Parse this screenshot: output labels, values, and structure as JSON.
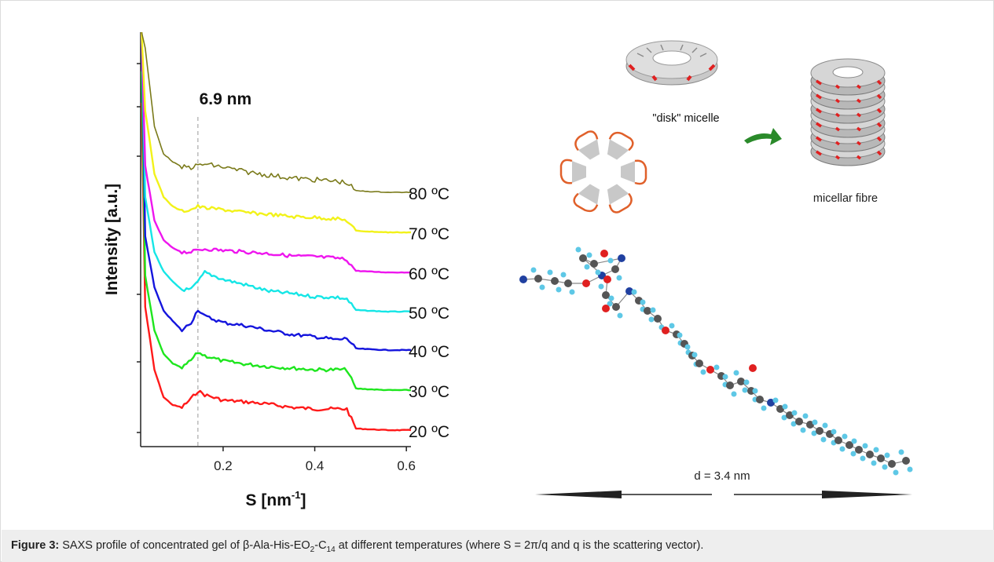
{
  "figure": {
    "label": "Figure 3:",
    "caption": {
      "pre": "SAXS profile of concentrated gel of β-Ala-His-EO",
      "sub1": "2",
      "mid": "-C",
      "sub2": "14",
      "post": " at different temperatures (where S = 2π/q and q is the scattering vector)."
    }
  },
  "chart_data": {
    "type": "line",
    "xlabel": "S [nm",
    "xlabel_sup": "-1",
    "xlabel_end": "]",
    "ylabel": "Intensity [a.u.]",
    "xlim": [
      0.02,
      0.61
    ],
    "xticks": [
      0.2,
      0.4,
      0.6
    ],
    "xtick_labels": [
      "0.2",
      "0.4",
      "0.6"
    ],
    "peak_annotation": "6.9 nm",
    "peak_position": 0.145,
    "series": [
      {
        "name": "20 ºC",
        "color": "#ff1a1a",
        "baseline": 548,
        "x": [
          0.03,
          0.05,
          0.07,
          0.09,
          0.11,
          0.13,
          0.145,
          0.16,
          0.2,
          0.25,
          0.3,
          0.35,
          0.4,
          0.45,
          0.47,
          0.49,
          0.52,
          0.56,
          0.61
        ],
        "y": [
          390,
          470,
          505,
          515,
          518,
          507,
          497,
          502,
          509,
          511,
          514,
          518,
          520,
          520,
          520,
          545,
          546,
          547,
          547
        ]
      },
      {
        "name": "30 ºC",
        "color": "#1ee61e",
        "baseline": 497,
        "x": [
          0.03,
          0.05,
          0.07,
          0.09,
          0.11,
          0.13,
          0.145,
          0.16,
          0.2,
          0.25,
          0.3,
          0.35,
          0.4,
          0.45,
          0.47,
          0.49,
          0.52,
          0.56,
          0.61
        ],
        "y": [
          350,
          420,
          450,
          462,
          468,
          458,
          448,
          452,
          459,
          463,
          466,
          468,
          470,
          470,
          470,
          494,
          495,
          496,
          496
        ]
      },
      {
        "name": "40 ºC",
        "color": "#1515dd",
        "baseline": 446,
        "x": [
          0.03,
          0.05,
          0.07,
          0.09,
          0.11,
          0.13,
          0.145,
          0.16,
          0.2,
          0.25,
          0.3,
          0.35,
          0.4,
          0.45,
          0.47,
          0.49,
          0.52,
          0.56,
          0.61
        ],
        "y": [
          300,
          365,
          395,
          408,
          420,
          410,
          393,
          402,
          410,
          414,
          420,
          425,
          428,
          432,
          430,
          443,
          444,
          445,
          445
        ]
      },
      {
        "name": "50 ºC",
        "color": "#15e6e6",
        "baseline": 397,
        "x": [
          0.03,
          0.05,
          0.07,
          0.09,
          0.11,
          0.13,
          0.145,
          0.16,
          0.2,
          0.25,
          0.3,
          0.35,
          0.4,
          0.45,
          0.47,
          0.49,
          0.52,
          0.56,
          0.61
        ],
        "y": [
          250,
          320,
          345,
          358,
          368,
          368,
          358,
          346,
          355,
          362,
          370,
          373,
          377,
          378,
          380,
          394,
          395,
          396,
          396
        ]
      },
      {
        "name": "60 ºC",
        "color": "#ee16ee",
        "baseline": 347,
        "x": [
          0.03,
          0.05,
          0.07,
          0.09,
          0.11,
          0.13,
          0.145,
          0.16,
          0.2,
          0.25,
          0.3,
          0.35,
          0.4,
          0.45,
          0.47,
          0.49,
          0.52,
          0.56,
          0.61
        ],
        "y": [
          210,
          280,
          305,
          315,
          320,
          320,
          318,
          316,
          318,
          320,
          322,
          325,
          326,
          328,
          330,
          344,
          345,
          346,
          346
        ]
      },
      {
        "name": "70 ºC",
        "color": "#f2f21a",
        "baseline": 296,
        "x": [
          0.03,
          0.05,
          0.07,
          0.09,
          0.11,
          0.13,
          0.145,
          0.16,
          0.2,
          0.25,
          0.3,
          0.35,
          0.4,
          0.45,
          0.47,
          0.49,
          0.52,
          0.56,
          0.61
        ],
        "y": [
          140,
          220,
          250,
          262,
          268,
          266,
          262,
          264,
          266,
          270,
          272,
          275,
          276,
          278,
          280,
          293,
          294,
          295,
          295
        ]
      },
      {
        "name": "80 ºC",
        "color": "#7a7a1a",
        "baseline": 245,
        "x": [
          0.03,
          0.05,
          0.07,
          0.09,
          0.11,
          0.13,
          0.145,
          0.16,
          0.2,
          0.25,
          0.3,
          0.35,
          0.4,
          0.45,
          0.47,
          0.49,
          0.52,
          0.56,
          0.61
        ],
        "y": [
          60,
          160,
          195,
          205,
          212,
          212,
          210,
          208,
          212,
          218,
          222,
          226,
          228,
          230,
          232,
          242,
          243,
          244,
          244
        ]
      }
    ]
  },
  "diagram": {
    "disk_label": "\"disk\" micelle",
    "fibre_label": "micellar fibre",
    "distance_label": "d = 3.4 nm"
  },
  "colors": {
    "axis": "#222222",
    "guide": "#999999",
    "micelle_grey": "#bdbdbd",
    "micelle_red": "#e02020",
    "arrow_green": "#2a8a2a",
    "atom_carbon": "#555555",
    "atom_hydrogen": "#5ec8e6",
    "atom_oxygen": "#e02020",
    "atom_nitrogen": "#2040a0"
  }
}
